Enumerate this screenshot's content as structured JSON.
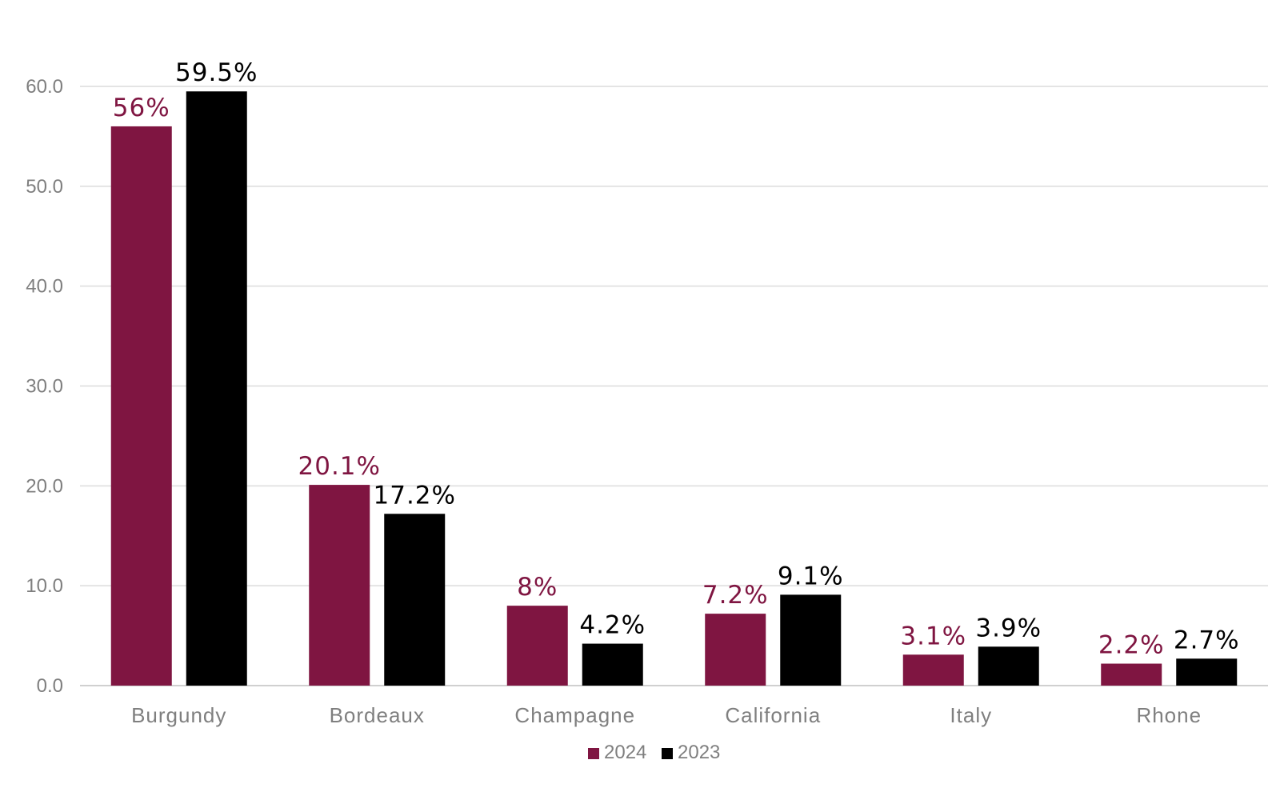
{
  "chart_data": {
    "type": "bar",
    "title": "",
    "xlabel": "",
    "ylabel": "",
    "categories": [
      "Burgundy",
      "Bordeaux",
      "Champagne",
      "California",
      "Italy",
      "Rhone"
    ],
    "series": [
      {
        "name": "2024",
        "color": "#7f1541",
        "values": [
          56,
          20.1,
          8,
          7.2,
          3.1,
          2.2
        ],
        "labels": [
          "56%",
          "20.1%",
          "8%",
          "7.2%",
          "3.1%",
          "2.2%"
        ]
      },
      {
        "name": "2023",
        "color": "#000000",
        "values": [
          59.5,
          17.2,
          4.2,
          9.1,
          3.9,
          2.7
        ],
        "labels": [
          "59.5%",
          "17.2%",
          "4.2%",
          "9.1%",
          "3.9%",
          "2.7%"
        ]
      }
    ],
    "ylim": [
      0,
      60
    ],
    "yticks": [
      0,
      10,
      20,
      30,
      40,
      50,
      60
    ],
    "ytick_labels": [
      "0.0",
      "10.0",
      "20.0",
      "30.0",
      "40.0",
      "50.0",
      "60.0"
    ],
    "grid": true,
    "legend": "bottom-center"
  }
}
